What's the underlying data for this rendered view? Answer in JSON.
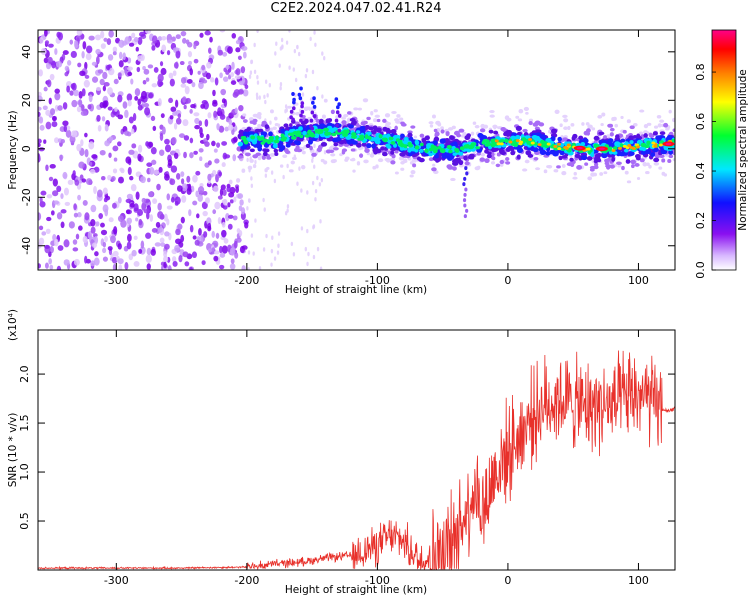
{
  "title": "C2E2.2024.047.02.41.R24",
  "chart_data": [
    {
      "type": "heatmap",
      "xlabel": "Height of straight line (km)",
      "ylabel": "Frequency (Hz)",
      "xlim": [
        -360,
        128
      ],
      "ylim": [
        -50,
        49
      ],
      "xticks": [
        -300,
        -200,
        -100,
        0,
        100
      ],
      "yticks": [
        -40,
        -20,
        0,
        20,
        40
      ],
      "colorbar": {
        "label": "Normalized spectral amplitude",
        "range": [
          0.0,
          0.97
        ],
        "ticks": [
          0.0,
          0.2,
          0.4,
          0.6,
          0.8
        ],
        "colormap": [
          "#ffffff",
          "#d8b8ff",
          "#7a00e8",
          "#0010ff",
          "#00e8ff",
          "#00ff40",
          "#ffff00",
          "#ff8000",
          "#ff0000",
          "#ff0080"
        ]
      },
      "ridge_center_hz": [
        {
          "x": -200,
          "y": 4
        },
        {
          "x": -180,
          "y": 3
        },
        {
          "x": -160,
          "y": 6
        },
        {
          "x": -140,
          "y": 7
        },
        {
          "x": -120,
          "y": 6
        },
        {
          "x": -100,
          "y": 4
        },
        {
          "x": -80,
          "y": 2
        },
        {
          "x": -60,
          "y": 0
        },
        {
          "x": -40,
          "y": -1
        },
        {
          "x": -20,
          "y": 2
        },
        {
          "x": 0,
          "y": 3
        },
        {
          "x": 20,
          "y": 3
        },
        {
          "x": 40,
          "y": 1
        },
        {
          "x": 60,
          "y": 0
        },
        {
          "x": 80,
          "y": 0
        },
        {
          "x": 100,
          "y": 1
        },
        {
          "x": 120,
          "y": 2
        }
      ],
      "peak_amplitude_locations_km": [
        55,
        72,
        123
      ]
    },
    {
      "type": "line",
      "xlabel": "Height of straight line (km)",
      "ylabel": "SNR (10 * v/v)",
      "y_multiplier": "(x10⁴)",
      "xlim": [
        -360,
        128
      ],
      "ylim": [
        0,
        2.45
      ],
      "xticks": [
        -300,
        -200,
        -100,
        0,
        100
      ],
      "yticks": [
        0.5,
        1.0,
        1.5,
        2.0
      ],
      "series": [
        {
          "color": "#e8302a",
          "x": [
            -360,
            -300,
            -250,
            -200,
            -180,
            -160,
            -140,
            -120,
            -100,
            -90,
            -80,
            -70,
            -60,
            -50,
            -40,
            -35,
            -30,
            -25,
            -20,
            -15,
            -10,
            -5,
            0,
            5,
            10,
            20,
            30,
            40,
            50,
            60,
            70,
            80,
            90,
            100,
            110,
            118,
            122,
            128
          ],
          "y": [
            0.02,
            0.02,
            0.02,
            0.03,
            0.06,
            0.08,
            0.12,
            0.15,
            0.25,
            0.35,
            0.3,
            0.12,
            0.1,
            0.2,
            0.35,
            0.5,
            0.7,
            0.85,
            0.6,
            0.75,
            1.0,
            1.1,
            1.2,
            1.3,
            1.4,
            1.6,
            1.7,
            1.75,
            1.7,
            1.65,
            1.7,
            1.65,
            1.75,
            1.8,
            1.7,
            1.65,
            1.62,
            1.65
          ]
        }
      ]
    }
  ]
}
